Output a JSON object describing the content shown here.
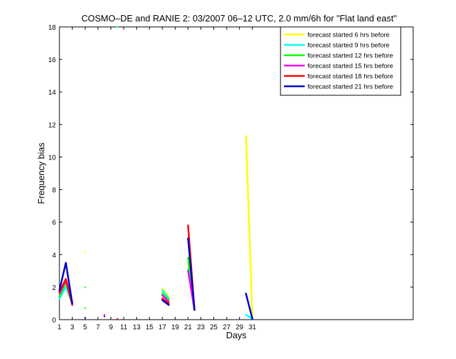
{
  "chart_data": {
    "type": "line",
    "title": "COSMO–DE and RANIE 2: 03/2007 06–12 UTC, 2.0 mm/6h for \"Flat land east\"",
    "xlabel": "Days",
    "ylabel": "Frequency bias",
    "xlim": [
      1,
      56
    ],
    "ylim": [
      0,
      18
    ],
    "xticks": [
      1,
      3,
      5,
      7,
      9,
      11,
      13,
      15,
      17,
      19,
      21,
      23,
      25,
      27,
      29,
      31
    ],
    "yticks": [
      0,
      2,
      4,
      6,
      8,
      10,
      12,
      14,
      16,
      18
    ],
    "grid": false,
    "legend_position": "top-right",
    "series": [
      {
        "name": "forecast started 6 hrs before",
        "color": "#ffff00",
        "segments": [
          [
            [
              1,
              1.5
            ],
            [
              2,
              2.2
            ],
            [
              3,
              1.1
            ]
          ],
          [
            [
              5,
              4.2
            ]
          ],
          [
            [
              17,
              1.9
            ],
            [
              18,
              1.4
            ]
          ],
          [
            [
              21,
              3.5
            ],
            [
              22,
              0.6
            ]
          ],
          [
            [
              30,
              11.3
            ],
            [
              31,
              0.2
            ]
          ]
        ]
      },
      {
        "name": "forecast started 9 hrs before",
        "color": "#00ffff",
        "segments": [
          [
            [
              1,
              1.3
            ],
            [
              2,
              2.0
            ],
            [
              3,
              1.0
            ]
          ],
          [
            [
              10,
              18.0
            ]
          ],
          [
            [
              17,
              1.8
            ],
            [
              18,
              1.3
            ]
          ],
          [
            [
              21,
              3.1
            ],
            [
              22,
              0.6
            ]
          ],
          [
            [
              30,
              0.3
            ],
            [
              31,
              0.05
            ]
          ]
        ]
      },
      {
        "name": "forecast started 12 hrs before",
        "color": "#00ff00",
        "segments": [
          [
            [
              1,
              1.4
            ],
            [
              2,
              2.3
            ],
            [
              3,
              1.0
            ]
          ],
          [
            [
              5,
              2.0
            ]
          ],
          [
            [
              5,
              0.7
            ]
          ],
          [
            [
              17,
              1.6
            ],
            [
              18,
              1.2
            ]
          ],
          [
            [
              21,
              3.8
            ],
            [
              22,
              0.6
            ]
          ]
        ]
      },
      {
        "name": "forecast started 15 hrs before",
        "color": "#ff00ff",
        "segments": [
          [
            [
              1,
              1.6
            ],
            [
              2,
              2.4
            ],
            [
              3,
              1.0
            ]
          ],
          [
            [
              8,
              0.3
            ]
          ],
          [
            [
              17,
              1.5
            ],
            [
              18,
              1.1
            ]
          ],
          [
            [
              21,
              3.0
            ],
            [
              22,
              0.6
            ]
          ]
        ]
      },
      {
        "name": "forecast started 18 hrs before",
        "color": "#ff0000",
        "segments": [
          [
            [
              1,
              1.7
            ],
            [
              2,
              2.5
            ],
            [
              3,
              0.9
            ]
          ],
          [
            [
              10,
              0.05
            ]
          ],
          [
            [
              17,
              1.3
            ],
            [
              18,
              1.0
            ]
          ],
          [
            [
              21,
              5.8
            ],
            [
              22,
              0.6
            ]
          ]
        ]
      },
      {
        "name": "forecast started 21 hrs before",
        "color": "#0000c8",
        "segments": [
          [
            [
              1,
              1.8
            ],
            [
              2,
              3.5
            ],
            [
              3,
              1.0
            ]
          ],
          [
            [
              5,
              0.1
            ]
          ],
          [
            [
              8,
              0.2
            ]
          ],
          [
            [
              17,
              1.2
            ],
            [
              18,
              0.9
            ]
          ],
          [
            [
              21,
              5.0
            ],
            [
              22,
              0.6
            ]
          ],
          [
            [
              30,
              1.6
            ],
            [
              31,
              0.05
            ]
          ]
        ]
      }
    ]
  }
}
